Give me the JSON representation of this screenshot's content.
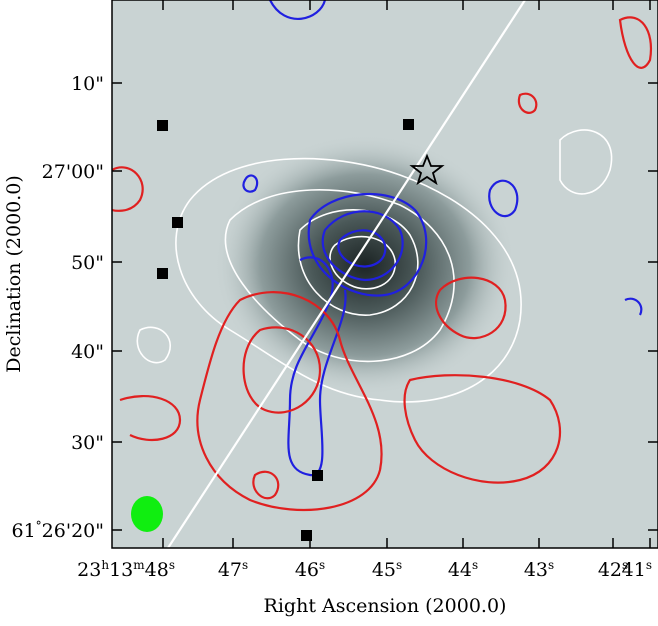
{
  "figure": {
    "x_label": "Right Ascension (2000.0)",
    "y_label": "Declination (2000.0)",
    "x_ticks": [
      "23h13m48s",
      "47s",
      "46s",
      "45s",
      "44s",
      "43s",
      "42s",
      "41s"
    ],
    "y_ticks": [
      "10\"",
      "27'00\"",
      "50\"",
      "40\"",
      "30\"",
      "61°26'20\""
    ]
  }
}
